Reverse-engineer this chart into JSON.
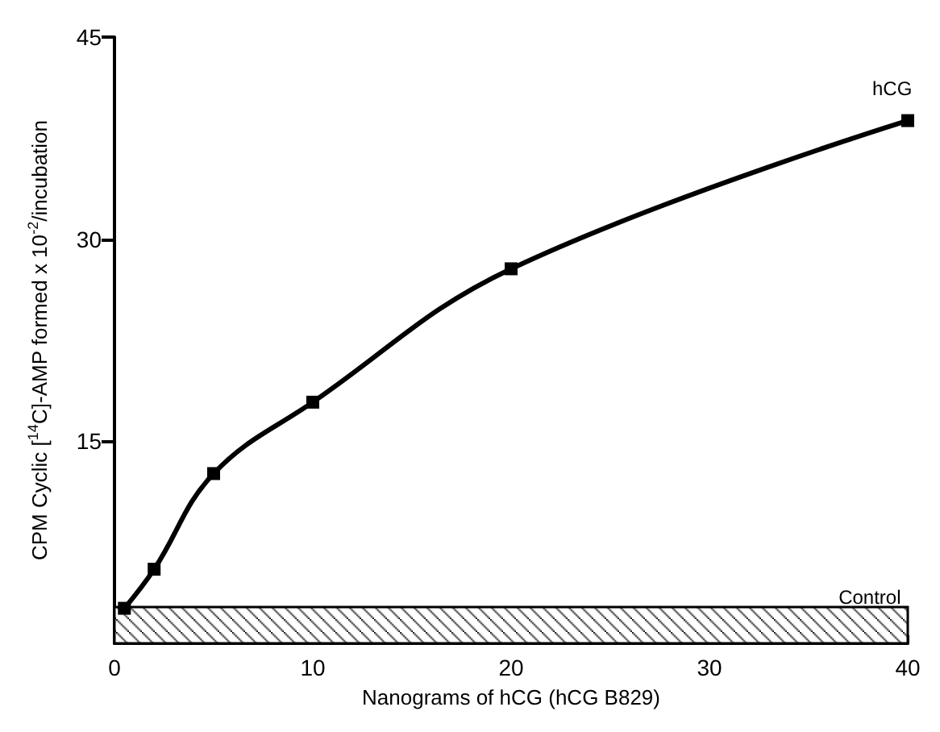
{
  "chart_data": {
    "type": "line",
    "xlabel": "Nanograms of hCG (hCG B829)",
    "ylabel": "CPM Cyclic [$^{14}$C]-AMP formed x 10$^{-2}$/incubation",
    "x": [
      0.5,
      2,
      5,
      10,
      20,
      40
    ],
    "series": [
      {
        "name": "hCG",
        "color": "#000000",
        "values": [
          2.6,
          5.5,
          12.6,
          17.9,
          27.8,
          38.8
        ]
      }
    ],
    "xlim": [
      0,
      40
    ],
    "xticks": [
      0,
      10,
      20,
      30,
      40
    ],
    "ylim": [
      0,
      45
    ],
    "yticks": [
      15,
      30,
      45
    ],
    "bands": [
      {
        "axis": "y",
        "from": 0,
        "to": 2.7,
        "label": "Control",
        "color": "#000000"
      }
    ],
    "grid": false,
    "legend": false,
    "marker": "square",
    "line_style": "solid"
  }
}
